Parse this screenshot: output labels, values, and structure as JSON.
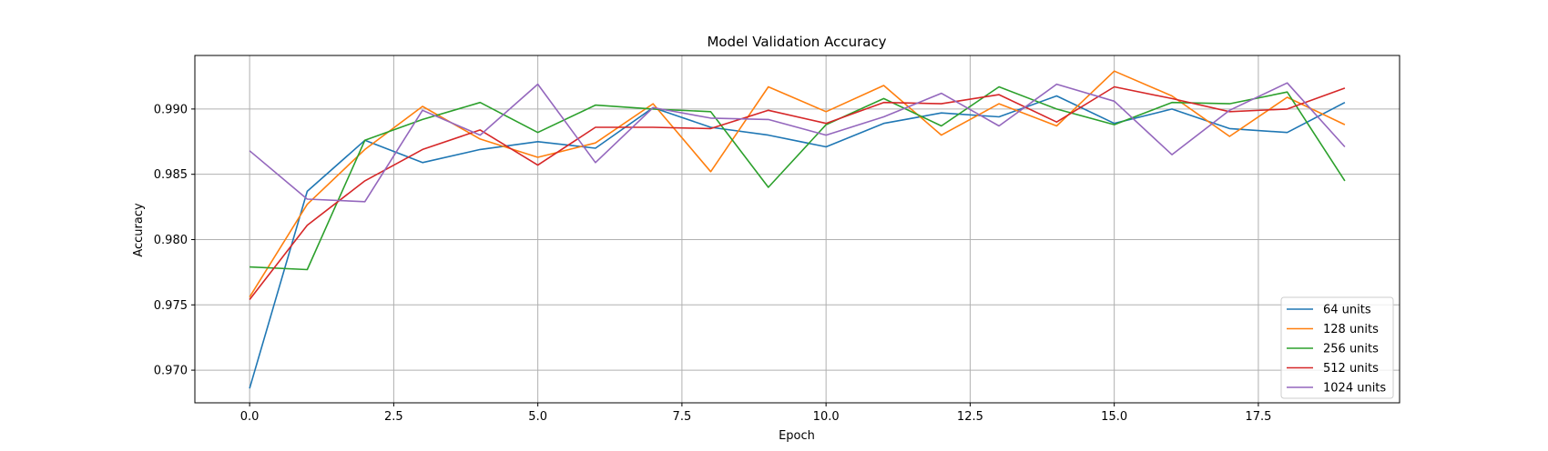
{
  "chart_data": {
    "type": "line",
    "title": "Model Validation Accuracy",
    "xlabel": "Epoch",
    "ylabel": "Accuracy",
    "xlim": [
      -0.95,
      19.95
    ],
    "ylim": [
      0.9675,
      0.9941
    ],
    "x_ticks": [
      0.0,
      2.5,
      5.0,
      7.5,
      10.0,
      12.5,
      15.0,
      17.5
    ],
    "x_tick_labels": [
      "0.0",
      "2.5",
      "5.0",
      "7.5",
      "10.0",
      "12.5",
      "15.0",
      "17.5"
    ],
    "y_ticks": [
      0.97,
      0.975,
      0.98,
      0.985,
      0.99
    ],
    "y_tick_labels": [
      "0.970",
      "0.975",
      "0.980",
      "0.985",
      "0.990"
    ],
    "grid": true,
    "legend_position": "bottom-right",
    "x": [
      0,
      1,
      2,
      3,
      4,
      5,
      6,
      7,
      8,
      9,
      10,
      11,
      12,
      13,
      14,
      15,
      16,
      17,
      18,
      19
    ],
    "series": [
      {
        "name": "64 units",
        "color": "#1f77b4",
        "values": [
          0.9686,
          0.9837,
          0.9876,
          0.9859,
          0.9869,
          0.9875,
          0.987,
          0.9901,
          0.9886,
          0.988,
          0.9871,
          0.9889,
          0.9897,
          0.9894,
          0.991,
          0.9889,
          0.99,
          0.9885,
          0.9882,
          0.9905
        ]
      },
      {
        "name": "128 units",
        "color": "#ff7f0e",
        "values": [
          0.9756,
          0.9827,
          0.9869,
          0.9902,
          0.9877,
          0.9863,
          0.9874,
          0.9904,
          0.9852,
          0.9917,
          0.9898,
          0.9918,
          0.988,
          0.9904,
          0.9887,
          0.9929,
          0.991,
          0.9879,
          0.9909,
          0.9888
        ]
      },
      {
        "name": "256 units",
        "color": "#2ca02c",
        "values": [
          0.9779,
          0.9777,
          0.9876,
          0.9892,
          0.9905,
          0.9882,
          0.9903,
          0.99,
          0.9898,
          0.984,
          0.9888,
          0.9908,
          0.9887,
          0.9917,
          0.99,
          0.9888,
          0.9905,
          0.9904,
          0.9913,
          0.9845
        ]
      },
      {
        "name": "512 units",
        "color": "#d62728",
        "values": [
          0.9754,
          0.9811,
          0.9845,
          0.9869,
          0.9884,
          0.9857,
          0.9886,
          0.9886,
          0.9885,
          0.9899,
          0.9889,
          0.9905,
          0.9904,
          0.9911,
          0.989,
          0.9917,
          0.9908,
          0.9898,
          0.99,
          0.9916
        ]
      },
      {
        "name": "1024 units",
        "color": "#9467bd",
        "values": [
          0.9868,
          0.9831,
          0.9829,
          0.9899,
          0.988,
          0.9919,
          0.9859,
          0.9901,
          0.9893,
          0.9892,
          0.988,
          0.9894,
          0.9912,
          0.9887,
          0.9919,
          0.9906,
          0.9865,
          0.9899,
          0.992,
          0.9871
        ]
      }
    ]
  }
}
